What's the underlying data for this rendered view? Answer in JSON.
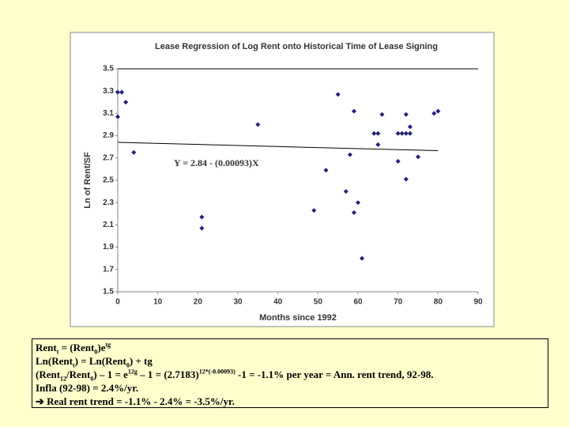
{
  "chart_data": {
    "type": "scatter",
    "title": "Lease Regression of Log Rent onto Historical Time of Lease Signing",
    "x_label": "Months since 1992",
    "y_label": "Ln of Rent/SF",
    "annotation": "Y = 2.84 - (0.00093)X",
    "trendline": {
      "intercept": 2.84,
      "slope": -0.00093
    },
    "xlim": [
      0,
      90
    ],
    "xticks": [
      0,
      10,
      20,
      30,
      40,
      50,
      60,
      70,
      80,
      90
    ],
    "ylim": [
      1.5,
      3.5
    ],
    "yticks": [
      1.5,
      1.7,
      1.9,
      2.1,
      2.3,
      2.5,
      2.7,
      2.9,
      3.1,
      3.3,
      3.5
    ],
    "series": [
      {
        "color": "#1f1f7a",
        "x": [
          0,
          0,
          1,
          2,
          4,
          21,
          21,
          35,
          49,
          52,
          55,
          57,
          58,
          59,
          59,
          60,
          61,
          64,
          65,
          65,
          66,
          70,
          70,
          71,
          72,
          73,
          72,
          72,
          73,
          75,
          79,
          80
        ],
        "values": [
          3.07,
          3.29,
          3.29,
          3.2,
          2.75,
          2.17,
          2.07,
          3.0,
          2.23,
          2.59,
          3.27,
          2.4,
          2.73,
          3.12,
          2.21,
          2.3,
          1.8,
          2.92,
          2.92,
          2.82,
          3.09,
          2.67,
          2.92,
          2.92,
          2.92,
          2.92,
          3.09,
          2.51,
          2.98,
          2.71,
          3.1,
          3.12
        ]
      }
    ]
  },
  "text_box": {
    "lines": [
      [
        {
          "t": "Rent"
        },
        {
          "t": "t",
          "s": "sub"
        },
        {
          "t": " = (Rent"
        },
        {
          "t": "0",
          "s": "sub"
        },
        {
          "t": ")e"
        },
        {
          "t": "tg",
          "s": "sup"
        }
      ],
      [
        {
          "t": "Ln(Rent"
        },
        {
          "t": "t",
          "s": "sub"
        },
        {
          "t": ") = Ln(Rent"
        },
        {
          "t": "0",
          "s": "sub"
        },
        {
          "t": ") +  tg"
        }
      ],
      [
        {
          "t": "(Rent"
        },
        {
          "t": "12",
          "s": "sub"
        },
        {
          "t": "/Rent"
        },
        {
          "t": "0",
          "s": "sub"
        },
        {
          "t": ") – 1 = e"
        },
        {
          "t": "12g",
          "s": "sup"
        },
        {
          "t": " – 1 = (2.7183)"
        },
        {
          "t": "12*(-0.00093)",
          "s": "sup"
        },
        {
          "t": " -1 = -1.1% per year = Ann. rent trend, 92-98."
        }
      ],
      [
        {
          "t": "Infla (92-98) = 2.4%/yr."
        }
      ],
      [
        {
          "t": "➔ Real rent trend = -1.1% - 2.4% = -3.5%/yr."
        }
      ]
    ]
  }
}
